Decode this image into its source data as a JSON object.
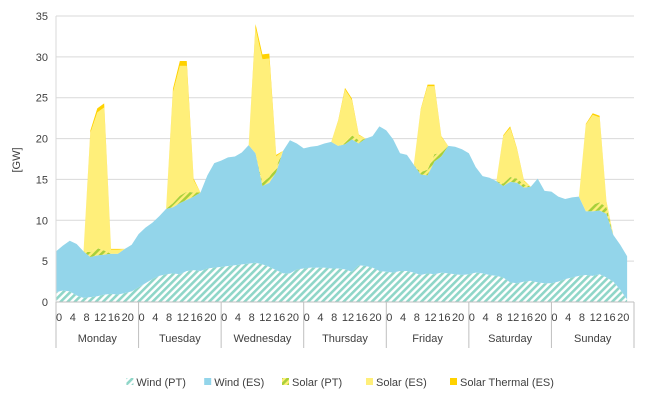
{
  "chart_data": {
    "type": "area",
    "stacked": true,
    "ylabel": "[GW]",
    "ylim": [
      0,
      35
    ],
    "yticks": [
      0,
      5,
      10,
      15,
      20,
      25,
      30,
      35
    ],
    "grid": true,
    "legend_position": "bottom",
    "days": [
      "Monday",
      "Tuesday",
      "Wednesday",
      "Thursday",
      "Friday",
      "Saturday",
      "Sunday"
    ],
    "hour_tick_labels": [
      "0",
      "4",
      "8",
      "12",
      "16",
      "20"
    ],
    "hours_per_day": 24,
    "x_step_hours": 2,
    "series": [
      {
        "name": "Wind (PT)",
        "color": "#8fd6c8",
        "pattern": "hatch",
        "values": [
          1.2,
          1.4,
          1.3,
          0.8,
          0.5,
          0.6,
          0.7,
          0.9,
          1.0,
          0.9,
          1.1,
          1.3,
          1.8,
          2.3,
          2.8,
          3.2,
          3.4,
          3.5,
          3.4,
          3.8,
          3.9,
          3.8,
          4.1,
          4.2,
          4.3,
          4.4,
          4.5,
          4.6,
          4.7,
          4.8,
          4.6,
          4.3,
          3.9,
          3.5,
          3.5,
          4.0,
          4.1,
          4.2,
          4.2,
          4.2,
          4.1,
          4.1,
          4.0,
          3.7,
          4.5,
          4.4,
          4.2,
          3.8,
          3.7,
          3.6,
          3.8,
          3.8,
          3.6,
          3.3,
          3.5,
          3.4,
          3.6,
          3.5,
          3.4,
          3.3,
          3.4,
          3.6,
          3.5,
          3.3,
          3.2,
          3.0,
          2.4,
          2.3,
          2.5,
          2.6,
          2.4,
          2.3,
          2.3,
          2.5,
          2.8,
          3.0,
          3.2,
          3.3,
          3.2,
          3.4,
          3.0,
          2.5,
          1.5,
          0.3
        ]
      },
      {
        "name": "Wind (ES)",
        "color": "#93d5ea",
        "pattern": "solid",
        "values": [
          5.0,
          5.5,
          6.2,
          6.3,
          5.7,
          4.9,
          5.0,
          4.9,
          4.9,
          5.0,
          5.4,
          5.7,
          6.5,
          6.8,
          6.9,
          7.3,
          8.0,
          8.1,
          8.7,
          8.7,
          9.0,
          9.6,
          11.4,
          12.8,
          13.0,
          13.3,
          13.3,
          13.7,
          14.5,
          13.4,
          9.6,
          10.3,
          12.0,
          15.0,
          16.3,
          15.4,
          14.7,
          14.8,
          14.9,
          15.2,
          15.5,
          15.0,
          15.3,
          16.2,
          14.9,
          15.6,
          16.1,
          17.7,
          17.3,
          16.3,
          14.4,
          14.2,
          13.2,
          12.3,
          12.0,
          13.8,
          14.2,
          15.6,
          15.6,
          15.4,
          14.8,
          12.9,
          11.9,
          11.9,
          11.6,
          11.2,
          12.3,
          12.3,
          11.5,
          11.5,
          12.7,
          11.3,
          11.2,
          10.4,
          9.8,
          9.8,
          9.7,
          7.8,
          7.9,
          7.8,
          7.8,
          5.7,
          5.5,
          5.3
        ]
      },
      {
        "name": "Solar (PT)",
        "color": "#c8e07a",
        "pattern": "hatch",
        "values": [
          0,
          0,
          0,
          0,
          0,
          0.6,
          0.9,
          0.5,
          0,
          0,
          0,
          0,
          0,
          0,
          0,
          0,
          0,
          0.5,
          0.9,
          1.0,
          0.5,
          0,
          0,
          0,
          0,
          0,
          0,
          0,
          0,
          0,
          0.4,
          0.7,
          0.6,
          0,
          0,
          0,
          0,
          0,
          0,
          0,
          0,
          0,
          0.3,
          0.5,
          0.4,
          0,
          0,
          0,
          0,
          0,
          0,
          0,
          0,
          0.3,
          0.7,
          0.9,
          0.5,
          0,
          0,
          0,
          0,
          0,
          0,
          0,
          0,
          0.3,
          0.6,
          0.5,
          0.4,
          0,
          0,
          0,
          0,
          0,
          0,
          0,
          0,
          0,
          0.8,
          1.0,
          0.8,
          0,
          0,
          0
        ]
      },
      {
        "name": "Solar (ES)",
        "color": "#ffef7a",
        "pattern": "solid",
        "values": [
          0,
          0,
          0,
          0,
          0,
          14.6,
          16.6,
          17.5,
          0.5,
          0.5,
          0,
          0,
          0,
          0,
          0,
          0,
          0,
          13.6,
          15.9,
          15.4,
          1.5,
          0,
          0,
          0,
          0,
          0,
          0,
          0,
          0,
          15.3,
          15.1,
          14.5,
          1.3,
          0,
          0,
          0,
          0,
          0,
          0,
          0,
          0,
          3.0,
          6.4,
          4.3,
          0.6,
          0,
          0,
          0,
          0,
          0,
          0,
          0,
          0,
          7.6,
          10.2,
          8.3,
          1.9,
          0,
          0,
          0,
          0,
          0,
          0,
          0,
          0,
          5.8,
          6.0,
          3.6,
          0.4,
          0,
          0,
          0,
          0,
          0,
          0,
          0,
          0,
          10.6,
          11.0,
          10.4,
          0.6,
          0,
          0,
          0
        ]
      },
      {
        "name": "Solar Thermal (ES)",
        "color": "#ffd200",
        "pattern": "solid",
        "values": [
          0,
          0,
          0,
          0,
          0,
          0.3,
          0.5,
          0.5,
          0.1,
          0.1,
          0,
          0,
          0,
          0,
          0,
          0,
          0,
          0.4,
          0.6,
          0.6,
          0.2,
          0,
          0,
          0,
          0,
          0,
          0,
          0,
          0,
          0.5,
          0.6,
          0.6,
          0.2,
          0,
          0,
          0,
          0,
          0,
          0,
          0,
          0,
          0.1,
          0.2,
          0.2,
          0.1,
          0,
          0,
          0,
          0,
          0,
          0,
          0,
          0,
          0.1,
          0.2,
          0.2,
          0.1,
          0,
          0,
          0,
          0,
          0,
          0,
          0,
          0,
          0.1,
          0.2,
          0.1,
          0.1,
          0,
          0,
          0,
          0,
          0,
          0,
          0,
          0,
          0.1,
          0.2,
          0.2,
          0.1,
          0,
          0,
          0
        ]
      }
    ]
  }
}
